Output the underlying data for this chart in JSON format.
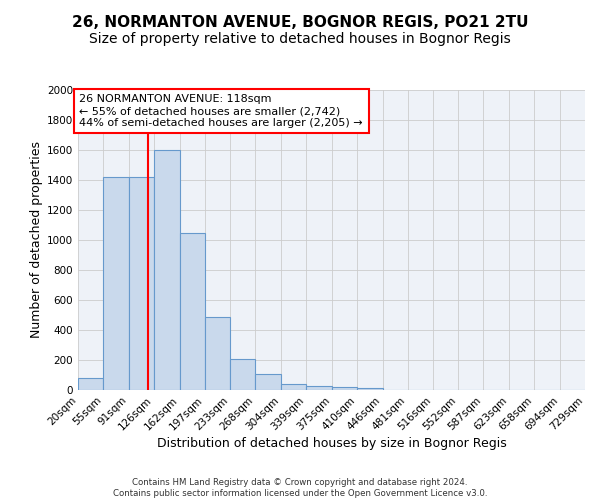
{
  "title1": "26, NORMANTON AVENUE, BOGNOR REGIS, PO21 2TU",
  "title2": "Size of property relative to detached houses in Bognor Regis",
  "xlabel": "Distribution of detached houses by size in Bognor Regis",
  "ylabel": "Number of detached properties",
  "bin_edges": [
    20,
    55,
    91,
    126,
    162,
    197,
    233,
    268,
    304,
    339,
    375,
    410,
    446,
    481,
    516,
    552,
    587,
    623,
    658,
    694,
    729
  ],
  "bar_heights": [
    80,
    1420,
    1420,
    1600,
    1050,
    490,
    205,
    105,
    40,
    25,
    20,
    15,
    0,
    0,
    0,
    0,
    0,
    0,
    0,
    0
  ],
  "bar_color": "#c9d9ec",
  "bar_edge_color": "#6699cc",
  "grid_color": "#cccccc",
  "bg_color": "#eef2f8",
  "red_line_x": 118,
  "annotation_text": "26 NORMANTON AVENUE: 118sqm\n← 55% of detached houses are smaller (2,742)\n44% of semi-detached houses are larger (2,205) →",
  "annotation_box_color": "white",
  "annotation_border_color": "red",
  "ylim": [
    0,
    2000
  ],
  "yticks": [
    0,
    200,
    400,
    600,
    800,
    1000,
    1200,
    1400,
    1600,
    1800,
    2000
  ],
  "footer": "Contains HM Land Registry data © Crown copyright and database right 2024.\nContains public sector information licensed under the Open Government Licence v3.0.",
  "title1_fontsize": 11,
  "title2_fontsize": 10,
  "xlabel_fontsize": 9,
  "ylabel_fontsize": 9,
  "tick_fontsize": 7.5,
  "annotation_fontsize": 8
}
